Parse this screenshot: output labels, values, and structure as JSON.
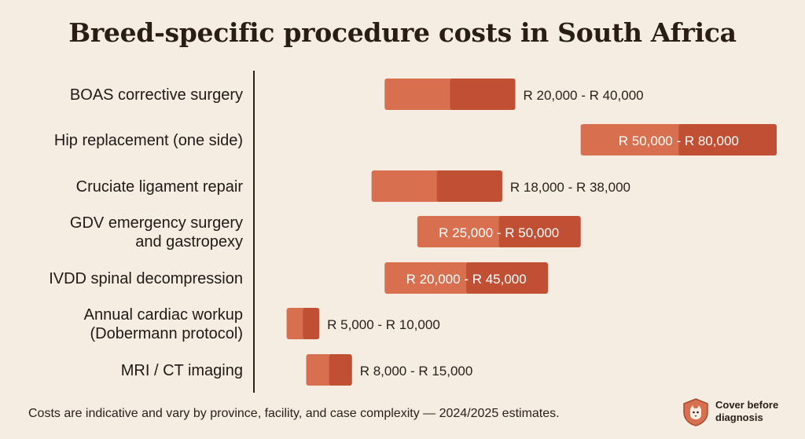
{
  "title": "Breed-specific procedure costs in South Africa",
  "footnote": "Costs are indicative and vary by province, facility, and case complexity — 2024/2025 estimates.",
  "brand": {
    "name": "Cover before diagnosis",
    "icon": "shield-dog-icon"
  },
  "colors": {
    "bar_light": "#d86f4e",
    "bar_dark": "#c04f34",
    "axis": "#2a211c",
    "label_light": "#ffffff",
    "label_dark": "#2a211c"
  },
  "chart_data": {
    "type": "bar",
    "orientation": "horizontal-range",
    "currency": "R",
    "xlim": [
      0,
      80000
    ],
    "grid": false,
    "categories": [
      "BOAS corrective surgery",
      "Hip replacement (one side)",
      "Cruciate ligament repair",
      "GDV emergency surgery and gastropexy",
      "IVDD spinal decompression",
      "Annual cardiac workup (Dobermann protocol)",
      "MRI / CT imaging"
    ],
    "ranges": [
      {
        "low": 20000,
        "high": 40000,
        "low_label": "R 20,000",
        "high_label": "R 40,000"
      },
      {
        "low": 50000,
        "high": 80000,
        "low_label": "R 50,000",
        "high_label": "R 80,000"
      },
      {
        "low": 18000,
        "high": 38000,
        "low_label": "R 18,000",
        "high_label": "R 38,000"
      },
      {
        "low": 25000,
        "high": 50000,
        "low_label": "R 25,000",
        "high_label": "R 50,000"
      },
      {
        "low": 20000,
        "high": 45000,
        "low_label": "R 20,000",
        "high_label": "R 45,000"
      },
      {
        "low": 5000,
        "high": 10000,
        "low_label": "R 5,000",
        "high_label": "R 10,000"
      },
      {
        "low": 8000,
        "high": 15000,
        "low_label": "R 8,000",
        "high_label": "R 15,000"
      }
    ]
  }
}
